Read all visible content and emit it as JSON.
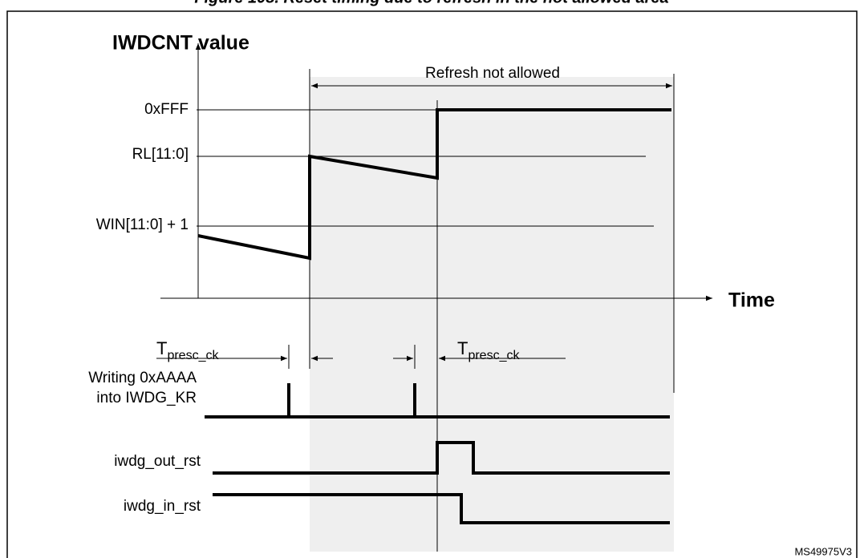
{
  "header": {
    "title": "Figure 108. Reset timing due to refresh in the not allowed area"
  },
  "axis": {
    "y_label": "IWDCNT value",
    "x_label": "Time"
  },
  "window": {
    "label": "Refresh not allowed"
  },
  "levels": [
    "0xFFF",
    "RL[11:0]",
    "WIN[11:0] + 1"
  ],
  "timing": [
    {
      "symbol": "T",
      "subscript": "presc_ck"
    },
    {
      "symbol": "T",
      "subscript": "presc_ck"
    }
  ],
  "signals": [
    {
      "label": [
        "Writing 0xAAAA",
        "into IWDG_KR"
      ]
    },
    {
      "label": [
        "iwdg_out_rst"
      ]
    },
    {
      "label": [
        "iwdg_in_rst"
      ]
    }
  ],
  "footer": {
    "ref": "MS49975V3"
  }
}
